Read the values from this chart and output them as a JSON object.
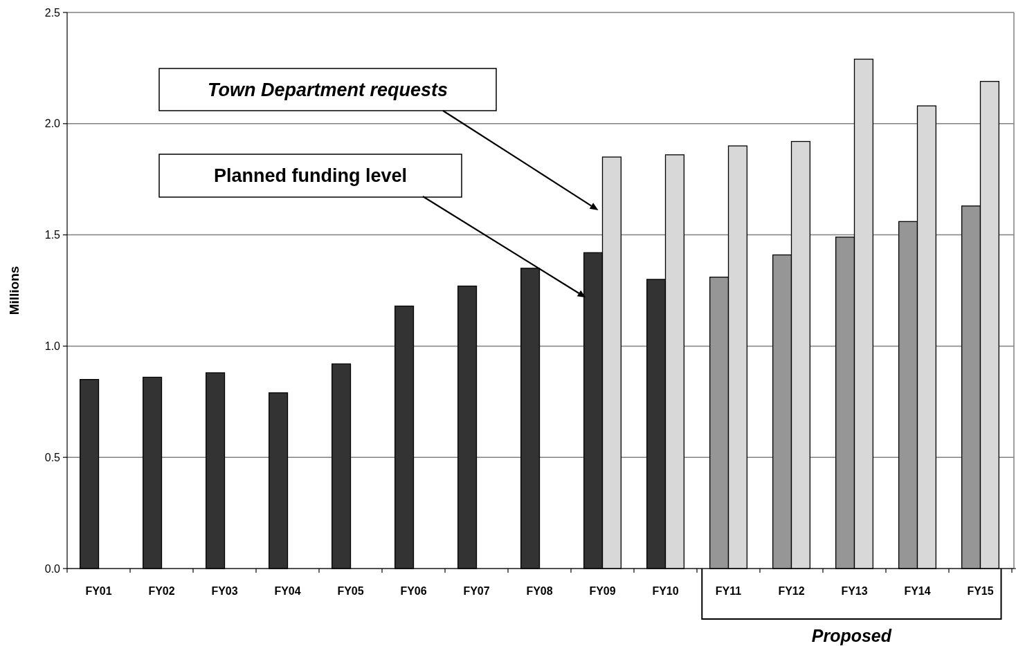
{
  "chart_data": {
    "type": "bar",
    "ylabel": "Millions",
    "categories": [
      "FY01",
      "FY02",
      "FY03",
      "FY04",
      "FY05",
      "FY06",
      "FY07",
      "FY08",
      "FY09",
      "FY10",
      "FY11",
      "FY12",
      "FY13",
      "FY14",
      "FY15"
    ],
    "series": [
      {
        "colors": [
          "#333333",
          "#333333",
          "#333333",
          "#333333",
          "#333333",
          "#333333",
          "#333333",
          "#333333",
          "#333333",
          "#333333",
          "#969696",
          "#969696",
          "#969696",
          "#969696",
          "#969696"
        ],
        "values": [
          0.85,
          0.86,
          0.88,
          0.79,
          0.92,
          1.18,
          1.27,
          1.35,
          1.42,
          1.3,
          1.31,
          1.41,
          1.49,
          1.56,
          1.63
        ]
      },
      {
        "color": "#d8d8d8",
        "values": [
          null,
          null,
          null,
          null,
          null,
          null,
          null,
          null,
          1.85,
          1.86,
          1.9,
          1.92,
          2.29,
          2.08,
          2.19
        ]
      }
    ],
    "ylim": [
      0,
      2.5
    ],
    "yticks": [
      {
        "value": 0,
        "label": "0.0"
      },
      {
        "value": 0.5,
        "label": "0.5"
      },
      {
        "value": 1,
        "label": "1.0"
      },
      {
        "value": 1.5,
        "label": "1.5"
      },
      {
        "value": 2,
        "label": "2.0"
      },
      {
        "value": 2.5,
        "label": "2.5"
      }
    ],
    "grid": "y",
    "annotations": [
      "Planned funding level",
      "Town Department requests",
      "Proposed"
    ]
  }
}
